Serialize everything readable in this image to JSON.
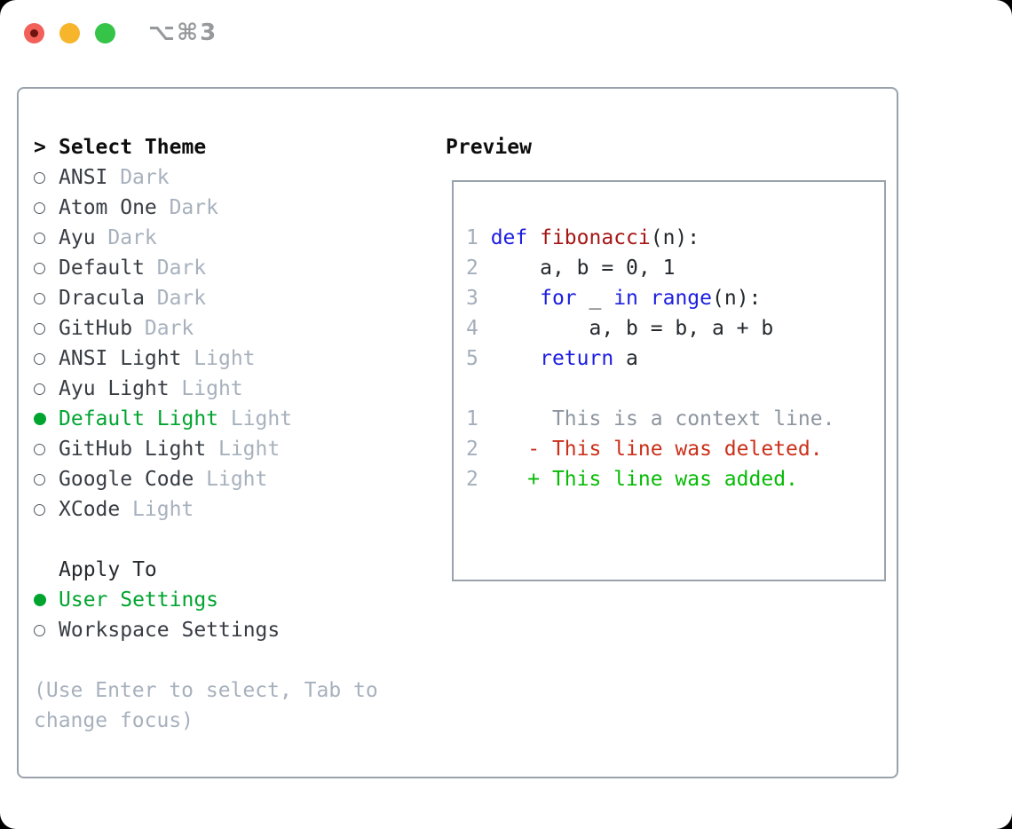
{
  "window": {
    "shortcut": "⌥⌘3",
    "traffic_lights": [
      {
        "name": "close"
      },
      {
        "name": "minimize"
      },
      {
        "name": "zoom"
      }
    ]
  },
  "select_theme": {
    "caret": ">",
    "heading": "Select Theme",
    "items": [
      {
        "name": "ANSI",
        "variant": "Dark",
        "selected": false
      },
      {
        "name": "Atom One",
        "variant": "Dark",
        "selected": false
      },
      {
        "name": "Ayu",
        "variant": "Dark",
        "selected": false
      },
      {
        "name": "Default",
        "variant": "Dark",
        "selected": false
      },
      {
        "name": "Dracula",
        "variant": "Dark",
        "selected": false
      },
      {
        "name": "GitHub",
        "variant": "Dark",
        "selected": false
      },
      {
        "name": "ANSI Light",
        "variant": "Light",
        "selected": false
      },
      {
        "name": "Ayu Light",
        "variant": "Light",
        "selected": false
      },
      {
        "name": "Default Light",
        "variant": "Light",
        "selected": true
      },
      {
        "name": "GitHub Light",
        "variant": "Light",
        "selected": false
      },
      {
        "name": "Google Code",
        "variant": "Light",
        "selected": false
      },
      {
        "name": "XCode",
        "variant": "Light",
        "selected": false
      }
    ]
  },
  "apply_to": {
    "heading": "Apply To",
    "options": [
      {
        "label": "User Settings",
        "selected": true
      },
      {
        "label": "Workspace Settings",
        "selected": false
      }
    ]
  },
  "help_text": "(Use Enter to select, Tab to change focus)",
  "preview": {
    "heading": "Preview",
    "colors": {
      "keyword": "#1d1de0",
      "function_name": "#a51616",
      "code": "#24292e",
      "line_number": "#a4aebb",
      "context": "#8d959f",
      "deleted": "#cb2f1a",
      "added": "#06bb06"
    },
    "lines": [
      {
        "num": "1",
        "segs": [
          {
            "t": "def",
            "c": "keyword"
          },
          {
            "t": " ",
            "c": "code"
          },
          {
            "t": "fibonacci",
            "c": "function_name"
          },
          {
            "t": "(n):",
            "c": "code"
          }
        ]
      },
      {
        "num": "2",
        "segs": [
          {
            "t": "    a, b = 0, 1",
            "c": "code"
          }
        ]
      },
      {
        "num": "3",
        "segs": [
          {
            "t": "    ",
            "c": "code"
          },
          {
            "t": "for",
            "c": "keyword"
          },
          {
            "t": " _ ",
            "c": "code"
          },
          {
            "t": "in",
            "c": "keyword"
          },
          {
            "t": " ",
            "c": "code"
          },
          {
            "t": "range",
            "c": "keyword"
          },
          {
            "t": "(n):",
            "c": "code"
          }
        ]
      },
      {
        "num": "4",
        "segs": [
          {
            "t": "        a, b = b, a + b",
            "c": "code"
          }
        ]
      },
      {
        "num": "5",
        "segs": [
          {
            "t": "    ",
            "c": "code"
          },
          {
            "t": "return",
            "c": "keyword"
          },
          {
            "t": " a",
            "c": "code"
          }
        ]
      },
      {
        "num": "",
        "segs": []
      },
      {
        "num": "1",
        "segs": [
          {
            "t": "     This is a context line.",
            "c": "context"
          }
        ]
      },
      {
        "num": "2",
        "segs": [
          {
            "t": "   - This line was deleted.",
            "c": "deleted"
          }
        ]
      },
      {
        "num": "2",
        "segs": [
          {
            "t": "   + This line was added.",
            "c": "added"
          }
        ]
      }
    ]
  },
  "ui_colors": {
    "selected_green": "#00a42f",
    "panel_border": "#9aa2ac",
    "muted_text": "#a7b1bd",
    "item_text": "#383d44",
    "heading_text": "#0d0d0d",
    "radio_outline": "#50555b",
    "traffic_red": "#f2605a",
    "traffic_yellow": "#f6b52b",
    "traffic_green": "#35c348",
    "shortcut_gray": "#97999c"
  }
}
